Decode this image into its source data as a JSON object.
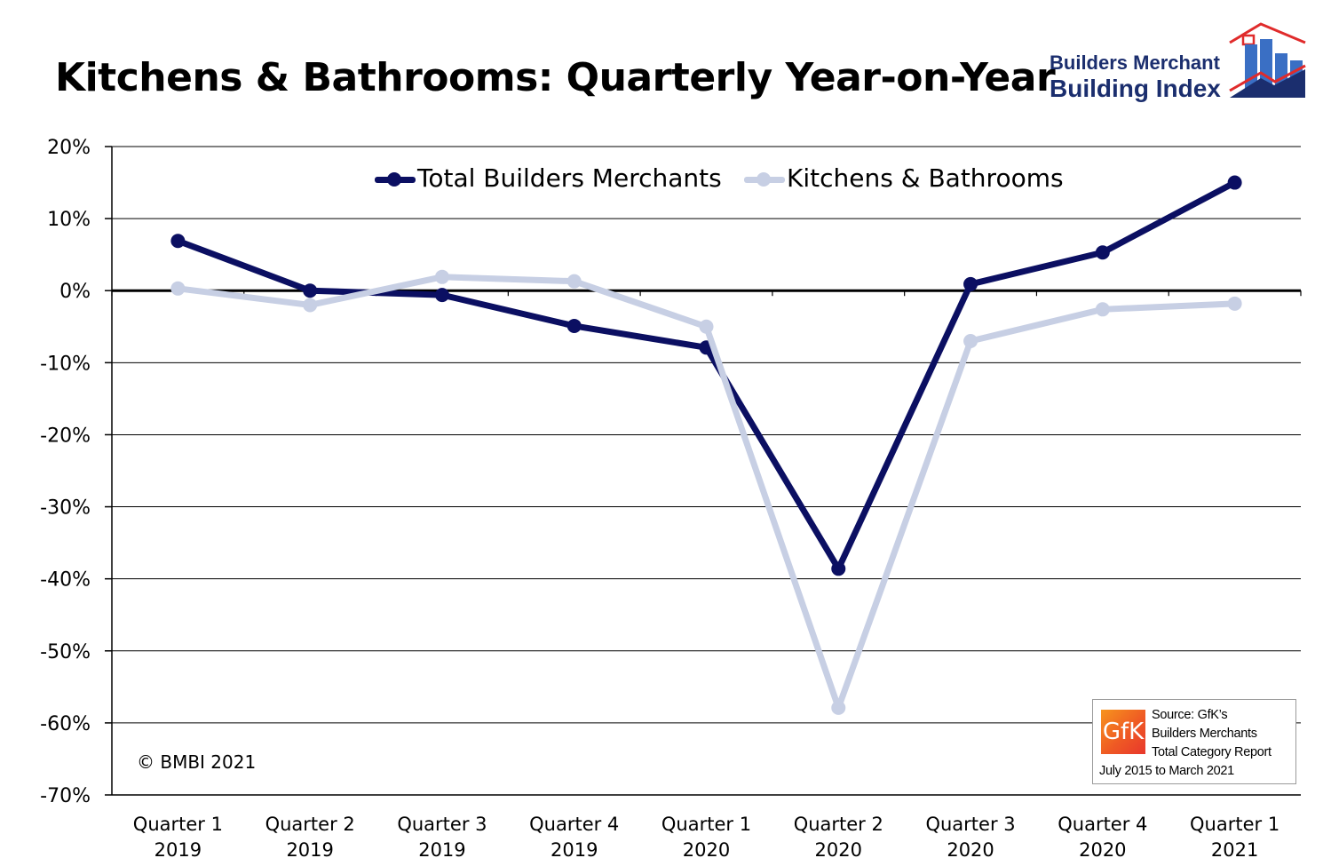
{
  "title": "Kitchens & Bathrooms: Quarterly Year-on-Year",
  "brand": {
    "line1": "Builders Merchant",
    "line2": "Building Index",
    "color": "#1b2e6e"
  },
  "copyright": "© BMBI 2021",
  "source": {
    "logo_text": "GfK",
    "line1": "Source: GfK’s",
    "line2": "Builders Merchants",
    "line3": "Total Category Report",
    "line4": "July 2015 to March 2021"
  },
  "chart_data": {
    "type": "line",
    "title": "Kitchens & Bathrooms: Quarterly Year-on-Year",
    "categories": [
      [
        "Quarter 1",
        "2019"
      ],
      [
        "Quarter 2",
        "2019"
      ],
      [
        "Quarter 3",
        "2019"
      ],
      [
        "Quarter 4",
        "2019"
      ],
      [
        "Quarter 1",
        "2020"
      ],
      [
        "Quarter 2",
        "2020"
      ],
      [
        "Quarter 3",
        "2020"
      ],
      [
        "Quarter 4",
        "2020"
      ],
      [
        "Quarter 1",
        "2021"
      ]
    ],
    "series": [
      {
        "name": "Total Builders Merchants",
        "color": "#0b0f62",
        "values": [
          6.9,
          0.0,
          -0.6,
          -4.9,
          -7.9,
          -38.6,
          0.9,
          5.3,
          15.0
        ]
      },
      {
        "name": "Kitchens & Bathrooms",
        "color": "#c7cfe4",
        "values": [
          0.3,
          -2.0,
          1.9,
          1.3,
          -5.0,
          -57.9,
          -7.0,
          -2.6,
          -1.8
        ]
      }
    ],
    "yticks": [
      "20%",
      "10%",
      "0%",
      "-10%",
      "-20%",
      "-30%",
      "-40%",
      "-50%",
      "-60%",
      "-70%"
    ],
    "ylim": [
      -70,
      20
    ],
    "ytick_step": 10,
    "grid": true,
    "legend_position": "top"
  }
}
